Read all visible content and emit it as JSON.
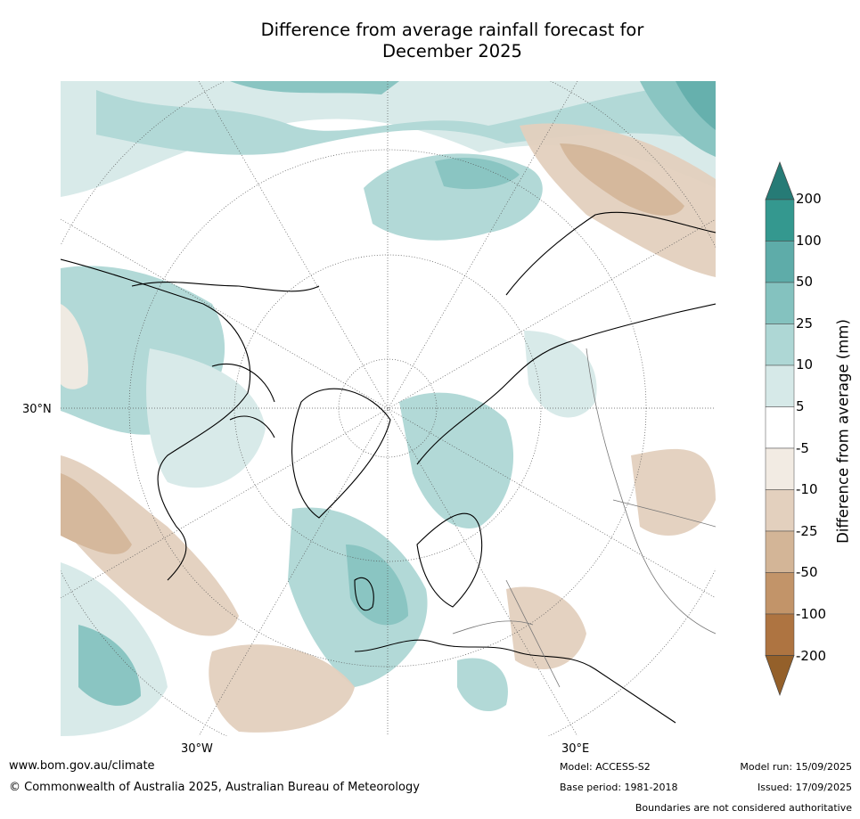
{
  "title": {
    "line1": "Difference from average rainfall forecast for",
    "line2": "December 2025"
  },
  "map": {
    "projection": "north-polar-stereographic",
    "graticule_labels": {
      "lat_30n": "30°N",
      "lon_30w": "30°W",
      "lon_30e": "30°E"
    }
  },
  "colorbar": {
    "title": "Difference from average (mm)",
    "tick_labels": [
      "200",
      "100",
      "50",
      "25",
      "10",
      "5",
      "-5",
      "-10",
      "-25",
      "-50",
      "-100",
      "-200"
    ],
    "colors": {
      "gt200": "#267b76",
      "100_200": "#34988f",
      "50_100": "#5eaca9",
      "25_50": "#84c2bf",
      "10_25": "#aed7d5",
      "5_10": "#d6e9e8",
      "neutral": "#ffffff",
      "m5_m10": "#f2ebe3",
      "m10_m25": "#e3d0be",
      "m25_m50": "#d3b597",
      "m50_m100": "#c29469",
      "m100_m200": "#ae7441",
      "lt_m200": "#94602a"
    }
  },
  "footer": {
    "url": "www.bom.gov.au/climate",
    "copyright": "© Commonwealth of Australia 2025, Australian Bureau of Meteorology",
    "model": "Model: ACCESS-S2",
    "base_period": "Base period: 1981-2018",
    "model_run": "Model run: 15/09/2025",
    "issued": "Issued: 17/09/2025",
    "disclaimer": "Boundaries are not considered authoritative"
  }
}
